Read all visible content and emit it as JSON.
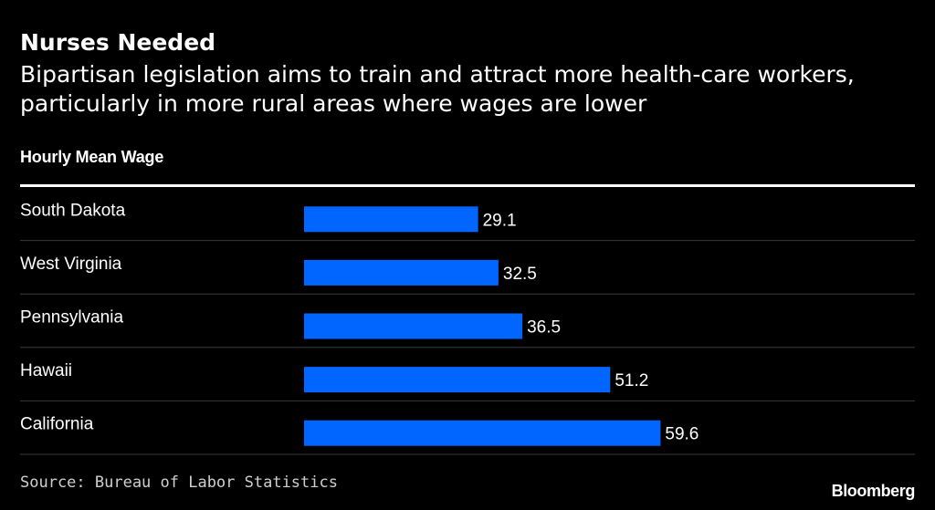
{
  "title": "Nurses Needed",
  "subtitle_lines": [
    "Bipartisan legislation aims to train and attract more health-care workers,",
    "particularly in more rural areas where wages are lower"
  ],
  "source": "Source: Bureau of Labor Statistics",
  "brand": "Bloomberg",
  "colors": {
    "background": "#000000",
    "bar": "#0066ff",
    "text": "#ffffff",
    "gridline": "#3a3a3a"
  },
  "chart_data": {
    "type": "bar",
    "orientation": "horizontal",
    "xlabel": "",
    "ylabel": "Hourly Mean Wage",
    "categories": [
      "South Dakota",
      "West Virginia",
      "Pennsylvania",
      "Hawaii",
      "California"
    ],
    "values": [
      29.1,
      32.5,
      36.5,
      51.2,
      59.6
    ],
    "value_labels": [
      "29.1",
      "32.5",
      "36.5",
      "51.2",
      "59.6"
    ],
    "xlim": [
      0,
      60
    ],
    "grid": false,
    "legend": "none"
  }
}
